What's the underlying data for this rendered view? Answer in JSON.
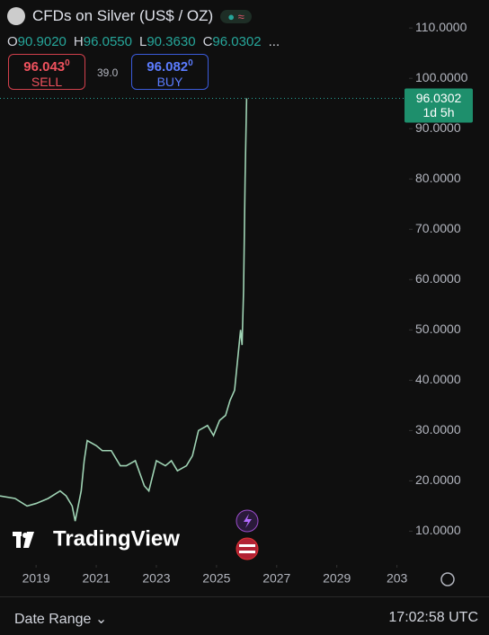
{
  "header": {
    "title": "CFDs on Silver (US$ / OZ)",
    "ohlc": [
      {
        "key": "O",
        "value": "90.9020"
      },
      {
        "key": "H",
        "value": "96.0550"
      },
      {
        "key": "L",
        "value": "90.3630"
      },
      {
        "key": "C",
        "value": "96.0302"
      }
    ],
    "more": "...",
    "sell": {
      "main": "96.043",
      "sup": "0",
      "label": "SELL"
    },
    "spread": "39.0",
    "buy": {
      "main": "96.082",
      "sup": "0",
      "label": "BUY"
    }
  },
  "chart_data": {
    "type": "line",
    "color": "#9fd3b4",
    "x": [
      2017.8,
      2018.3,
      2018.7,
      2019.0,
      2019.4,
      2019.8,
      2020.0,
      2020.2,
      2020.3,
      2020.5,
      2020.6,
      2020.7,
      2021.0,
      2021.2,
      2021.5,
      2021.8,
      2022.0,
      2022.3,
      2022.6,
      2022.75,
      2023.0,
      2023.3,
      2023.5,
      2023.7,
      2024.0,
      2024.2,
      2024.4,
      2024.7,
      2024.9,
      2025.1,
      2025.3,
      2025.45,
      2025.6,
      2025.7,
      2025.8,
      2025.85,
      2025.9,
      2025.95,
      2026.0
    ],
    "values": [
      17,
      16.5,
      15,
      15.5,
      16.5,
      18,
      17,
      15,
      12,
      18,
      24,
      28,
      27,
      26,
      26,
      23,
      23,
      24,
      19,
      18,
      24,
      23,
      24,
      22,
      23,
      25,
      30,
      31,
      29,
      32,
      33,
      36,
      38,
      44,
      50,
      47,
      58,
      80,
      96.0302
    ],
    "xlim": [
      2017.8,
      2031.4
    ],
    "ylim": [
      4,
      112
    ],
    "xticks": [
      2019,
      2021,
      2023,
      2025,
      2027,
      2029,
      {
        "value": 2031,
        "label": "203"
      }
    ],
    "yticks": [
      {
        "value": 10,
        "label": "10.0000"
      },
      {
        "value": 20,
        "label": "20.0000"
      },
      {
        "value": 30,
        "label": "30.0000"
      },
      {
        "value": 40,
        "label": "40.0000"
      },
      {
        "value": 50,
        "label": "50.0000"
      },
      {
        "value": 60,
        "label": "60.0000"
      },
      {
        "value": 70,
        "label": "70.0000"
      },
      {
        "value": 80,
        "label": "80.0000"
      },
      {
        "value": 90,
        "label": "90.0000"
      },
      {
        "value": 100,
        "label": "100.0000"
      },
      {
        "value": 110,
        "label": "110.0000"
      }
    ],
    "last_price": {
      "value": 96.0302,
      "label": "96.0302",
      "note": "1d 5h"
    }
  },
  "watermark": "TradingView",
  "footer": {
    "range": "Date Range",
    "time": "17:02:58 UTC"
  }
}
